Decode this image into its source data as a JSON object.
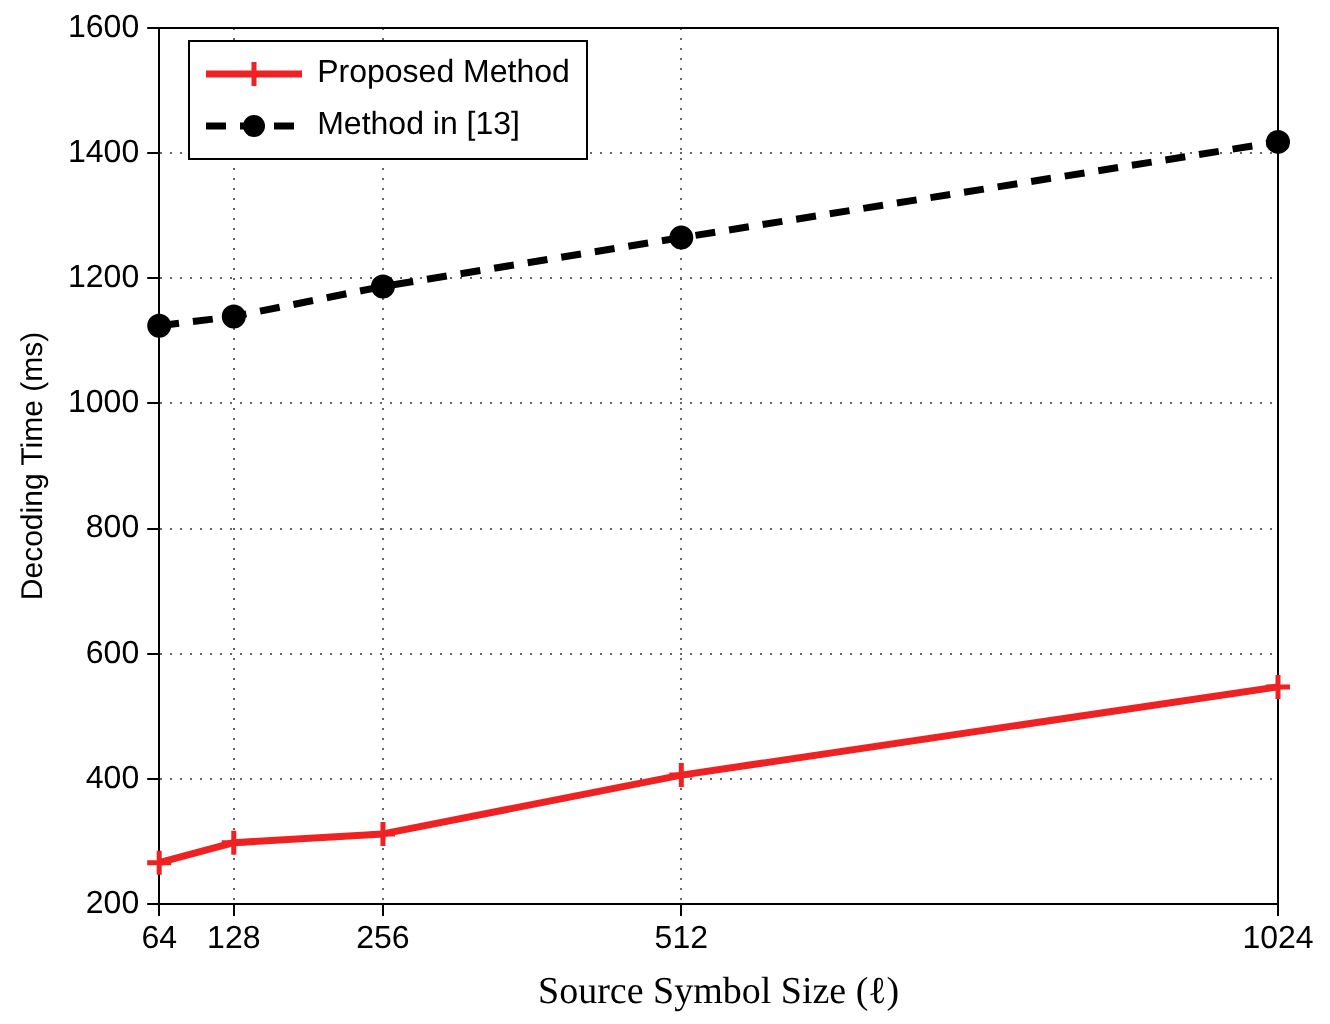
{
  "chart_data": {
    "type": "line",
    "xlabel": "Source Symbol Size (ℓ)",
    "ylabel": "Decoding Time (ms)",
    "x": [
      64,
      128,
      256,
      512,
      1024
    ],
    "xlim": [
      64,
      1024
    ],
    "xticks": [
      64,
      128,
      256,
      512,
      1024
    ],
    "ylim": [
      200,
      1600
    ],
    "yticks": [
      200,
      400,
      600,
      800,
      1000,
      1200,
      1400,
      1600
    ],
    "grid": true,
    "legend": "top left",
    "series": [
      {
        "name": "Proposed Method",
        "color": "#ee2222",
        "values": [
          266,
          298,
          312,
          406,
          547
        ],
        "marker": "cross",
        "line_style": "solid"
      },
      {
        "name": "Method in [13]",
        "color": "#000000",
        "values": [
          1124,
          1139,
          1187,
          1265,
          1418
        ],
        "marker": "circle",
        "line_style": "dashed"
      }
    ]
  }
}
